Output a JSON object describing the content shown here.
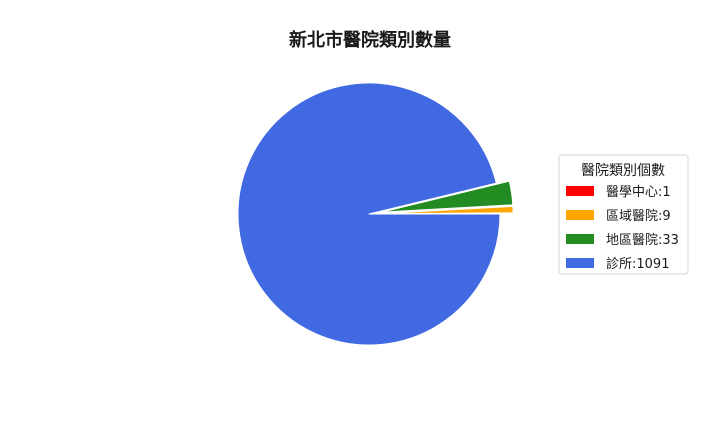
{
  "chart_data": {
    "type": "pie",
    "title": "新北市醫院類別數量",
    "legend_title": "醫院類別個數",
    "legend_position": "right",
    "start_angle_deg": 0,
    "direction": "counterclockwise",
    "slices": [
      {
        "label": "醫學中心",
        "value": 1,
        "legend_text": "醫學中心:1",
        "color": "#ff0000",
        "explode": 0.1
      },
      {
        "label": "區域醫院",
        "value": 9,
        "legend_text": "區域醫院:9",
        "color": "#ffa500",
        "explode": 0.1
      },
      {
        "label": "地區醫院",
        "value": 33,
        "legend_text": "地區醫院:33",
        "color": "#228b22",
        "explode": 0.1
      },
      {
        "label": "診所",
        "value": 1091,
        "legend_text": "診所:1091",
        "color": "#4169e1",
        "explode": 0
      }
    ]
  }
}
